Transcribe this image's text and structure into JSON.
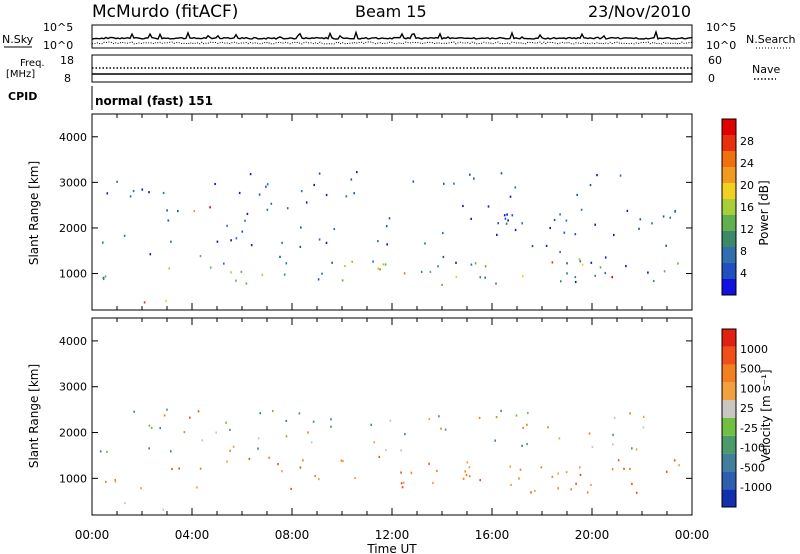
{
  "header": {
    "station": "McMurdo (fitACF)",
    "beam": "Beam 15",
    "date": "23/Nov/2010"
  },
  "top_panels": {
    "nsky_label": "N.Sky",
    "nsearch_label": "N.Search",
    "noise_ticks": [
      "10^5",
      "10^0"
    ],
    "freq_label_line1": "Freq.",
    "freq_label_line2": "[MHz]",
    "freq_ticks": [
      "18",
      "8"
    ],
    "nave_label": "Nave",
    "nave_ticks": [
      "60",
      "0"
    ],
    "cpid_label": "CPID",
    "cpid_value": "normal (fast) 151"
  },
  "colors": {
    "power_scale": [
      "#1010e0",
      "#2050c0",
      "#2f6fb0",
      "#3a8a6a",
      "#60b050",
      "#a8cf3a",
      "#f0d020",
      "#f09a20",
      "#f07010",
      "#e83010",
      "#e00000"
    ],
    "velocity_scale": [
      "#1030b0",
      "#2c5fb0",
      "#3f7f9a",
      "#4a9a6a",
      "#6fbf40",
      "#c8c8c0",
      "#f0a040",
      "#f08020",
      "#f05018",
      "#e02010"
    ]
  },
  "chart_data": [
    {
      "type": "heatmap",
      "panel": "power",
      "ylabel": "Slant Range [km]",
      "yticks": [
        "1000",
        "2000",
        "3000",
        "4000"
      ],
      "ylim": [
        200,
        4500
      ],
      "xticks": [
        "00:00",
        "04:00",
        "08:00",
        "12:00",
        "16:00",
        "20:00",
        "00:00"
      ],
      "colorbar_label": "Power [dB]",
      "colorbar_ticks": [
        "4",
        "8",
        "12",
        "16",
        "20",
        "24",
        "28"
      ],
      "scatter_bands": [
        {
          "t0": 0.3,
          "t1": 23.5,
          "r0": 700,
          "r1": 1500,
          "level": "mid"
        },
        {
          "t0": 0.3,
          "t1": 23.5,
          "r0": 1600,
          "r1": 2600,
          "level": "low"
        },
        {
          "t0": 0.3,
          "t1": 21.5,
          "r0": 2700,
          "r1": 3300,
          "level": "low"
        },
        {
          "t0": 1.2,
          "t1": 3.0,
          "r0": 250,
          "r1": 600,
          "level": "high"
        },
        {
          "t0": 3.5,
          "t1": 4.8,
          "r0": 1900,
          "r1": 2500,
          "level": "high"
        },
        {
          "t0": 10.0,
          "t1": 22.0,
          "r0": 850,
          "r1": 1300,
          "level": "high"
        },
        {
          "t0": 15.5,
          "t1": 17.0,
          "r0": 1900,
          "r1": 2400,
          "level": "mid"
        }
      ]
    },
    {
      "type": "heatmap",
      "panel": "velocity",
      "ylabel": "Slant Range [km]",
      "yticks": [
        "1000",
        "2000",
        "3000",
        "4000"
      ],
      "ylim": [
        200,
        4500
      ],
      "xticks": [
        "00:00",
        "04:00",
        "08:00",
        "12:00",
        "16:00",
        "20:00",
        "00:00"
      ],
      "xlabel": "Time UT",
      "colorbar_label": "Velocity [m s⁻¹]",
      "colorbar_ticks": [
        "1000",
        "500",
        "100",
        "25",
        "-25",
        "-100",
        "-500",
        "-1000"
      ],
      "scatter_bands": [
        {
          "t0": 0.3,
          "t1": 23.5,
          "r0": 700,
          "r1": 1500,
          "level": "away"
        },
        {
          "t0": 0.3,
          "t1": 23.5,
          "r0": 1600,
          "r1": 2600,
          "level": "mixed"
        },
        {
          "t0": 1.2,
          "t1": 3.0,
          "r0": 250,
          "r1": 600,
          "level": "ground"
        },
        {
          "t0": 3.5,
          "t1": 4.8,
          "r0": 1900,
          "r1": 2500,
          "level": "strong"
        },
        {
          "t0": 10.0,
          "t1": 22.0,
          "r0": 850,
          "r1": 1300,
          "level": "away"
        }
      ]
    }
  ]
}
